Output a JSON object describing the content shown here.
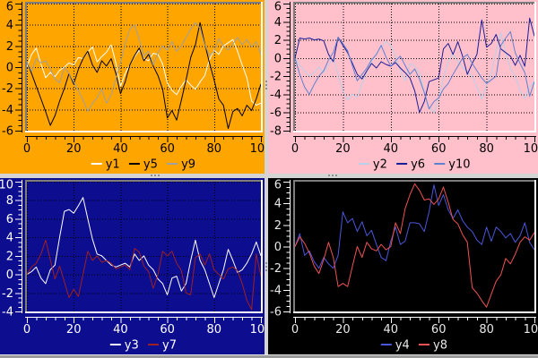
{
  "window": {
    "title": "",
    "splitter_color": "#d4d4d4",
    "splitter_dot_color": "#8f8f8f",
    "frame_dark": "#7d7d7d",
    "frame_light": "#ffffff"
  },
  "chart_data": [
    {
      "id": "top-left",
      "type": "line",
      "title": "",
      "xlabel": "",
      "ylabel": "",
      "xlim": [
        0,
        100
      ],
      "ylim": [
        -6,
        6
      ],
      "xticks": [
        0,
        20,
        40,
        60,
        80,
        100
      ],
      "yticks": [
        -6,
        -4,
        -2,
        0,
        2,
        4,
        6
      ],
      "x_step": 2,
      "x_minor_step": 4,
      "y_minor_step": 0.5,
      "grid": true,
      "legend_position": "bottom",
      "colors": {
        "background": "#ffa500",
        "text": "#000000",
        "axis": "#000000",
        "grid": "#000000"
      },
      "series": [
        {
          "name": "y1",
          "color": "#ffffff",
          "values": [
            0.0,
            1.2,
            1.8,
            0.3,
            -1.0,
            -0.5,
            -0.9,
            -0.3,
            0.0,
            0.4,
            0.2,
            0.9,
            0.8,
            1.4,
            1.9,
            0.5,
            1.0,
            1.4,
            2.1,
            0.4,
            -1.8,
            -0.6,
            0.2,
            1.0,
            1.6,
            0.8,
            0.6,
            1.3,
            1.2,
            0.3,
            -1.5,
            -2.2,
            -2.6,
            -1.8,
            -1.2,
            -1.7,
            -2.1,
            -1.4,
            -0.8,
            0.7,
            1.6,
            1.2,
            2.0,
            2.3,
            2.6,
            1.5,
            0.2,
            -1.0,
            -3.2,
            -3.6,
            -3.4
          ]
        },
        {
          "name": "y5",
          "color": "#000000",
          "values": [
            0.5,
            -0.6,
            -1.8,
            -3.0,
            -4.2,
            -5.5,
            -4.6,
            -3.2,
            -2.0,
            -0.6,
            -1.6,
            -0.2,
            0.8,
            1.5,
            0.2,
            -0.5,
            0.6,
            0.1,
            0.8,
            -0.6,
            -2.5,
            -1.4,
            0.2,
            1.1,
            1.8,
            0.6,
            1.2,
            0.1,
            -0.8,
            -2.1,
            -4.8,
            -4.1,
            -5.0,
            -3.1,
            -1.2,
            0.9,
            2.1,
            4.2,
            2.2,
            0.4,
            -1.2,
            -3.0,
            -3.6,
            -5.8,
            -4.2,
            -3.9,
            -4.6,
            -3.6,
            -4.1,
            -3.0,
            -1.6
          ]
        },
        {
          "name": "y9",
          "color": "#a0a0a0",
          "values": [
            0.5,
            -0.4,
            0.8,
            0.4,
            0.6,
            -0.2,
            -1.1,
            -1.5,
            0.0,
            -0.6,
            -1.4,
            -2.2,
            -3.1,
            -4.2,
            -3.4,
            -2.9,
            -2.1,
            -3.4,
            -2.6,
            -1.1,
            0.4,
            2.2,
            3.6,
            4.0,
            2.6,
            1.1,
            1.5,
            0.2,
            1.4,
            2.0,
            1.6,
            2.4,
            1.5,
            2.0,
            2.8,
            3.6,
            4.2,
            3.7,
            2.1,
            1.1,
            1.5,
            2.7,
            2.0,
            1.6,
            2.2,
            2.8,
            2.1,
            2.6,
            1.9,
            2.4,
            1.2
          ]
        }
      ]
    },
    {
      "id": "top-right",
      "type": "line",
      "title": "",
      "xlabel": "",
      "ylabel": "",
      "xlim": [
        0,
        100
      ],
      "ylim": [
        -8,
        6
      ],
      "xticks": [
        0,
        20,
        40,
        60,
        80,
        100
      ],
      "yticks": [
        -8,
        -6,
        -4,
        -2,
        0,
        2,
        4,
        6
      ],
      "x_step": 2,
      "x_minor_step": 4,
      "y_minor_step": 0.5,
      "grid": true,
      "legend_position": "bottom",
      "colors": {
        "background": "#ffc0cb",
        "text": "#000000",
        "axis": "#000000",
        "grid": "#000000"
      },
      "series": [
        {
          "name": "y2",
          "color": "#b8d0ea",
          "values": [
            0.0,
            -0.8,
            -1.4,
            -2.0,
            -1.6,
            -1.0,
            -1.6,
            -0.8,
            0.0,
            -1.8,
            -3.6,
            -4.6,
            -4.0,
            -4.3,
            -2.8,
            -1.5,
            -0.4,
            0.5,
            1.2,
            1.8,
            1.4,
            0.2,
            -1.4,
            -2.5,
            -0.6,
            -0.9,
            -1.6,
            -3.8,
            -5.4,
            -6.0,
            -4.4,
            -2.2,
            -0.4,
            0.5,
            -0.4,
            -1.0,
            -1.6,
            -2.0,
            -3.2,
            -4.5,
            -3.0,
            -1.6,
            0.8,
            2.8,
            0.6,
            -1.2,
            -2.0,
            -3.6,
            -4.4,
            -3.2,
            -2.6
          ]
        },
        {
          "name": "y6",
          "color": "#1c1c96",
          "values": [
            0.0,
            2.2,
            2.1,
            2.2,
            2.0,
            2.1,
            1.9,
            0.4,
            -0.4,
            2.3,
            1.4,
            0.6,
            -0.6,
            -1.8,
            -2.3,
            -1.4,
            -0.6,
            -1.1,
            -0.4,
            -0.7,
            -0.9,
            -0.5,
            -1.1,
            -1.6,
            -2.2,
            -3.6,
            -6.0,
            -4.8,
            -2.6,
            -2.4,
            -2.2,
            1.0,
            1.6,
            0.4,
            1.8,
            0.2,
            -1.8,
            -0.6,
            0.4,
            4.2,
            1.2,
            1.6,
            2.6,
            1.0,
            0.6,
            0.2,
            -0.8,
            0.3,
            -0.9,
            4.4,
            2.4
          ]
        },
        {
          "name": "y10",
          "color": "#6080d0",
          "values": [
            0.0,
            -1.8,
            -3.2,
            -4.0,
            -2.9,
            -2.0,
            -1.4,
            -0.2,
            0.6,
            2.3,
            1.6,
            0.8,
            -0.9,
            -2.5,
            -1.8,
            -1.1,
            -0.2,
            0.4,
            1.4,
            0.1,
            -0.9,
            -0.3,
            0.2,
            -0.8,
            -1.8,
            -1.2,
            -2.3,
            -3.8,
            -5.6,
            -4.8,
            -4.4,
            -3.4,
            -2.8,
            -1.8,
            -0.9,
            0.0,
            0.4,
            -0.6,
            -1.4,
            -2.2,
            -2.8,
            -2.4,
            -2.0,
            1.4,
            2.2,
            2.9,
            0.6,
            -0.6,
            -1.6,
            -4.2,
            -2.6
          ]
        }
      ]
    },
    {
      "id": "bottom-left",
      "type": "line",
      "title": "",
      "xlabel": "",
      "ylabel": "",
      "xlim": [
        0,
        100
      ],
      "ylim": [
        -4,
        10
      ],
      "xticks": [
        0,
        20,
        40,
        60,
        80,
        100
      ],
      "yticks": [
        -4,
        -2,
        0,
        2,
        4,
        6,
        8,
        10
      ],
      "x_step": 2,
      "x_minor_step": 4,
      "y_minor_step": 0.5,
      "grid": true,
      "legend_position": "bottom",
      "colors": {
        "background": "#0d0d90",
        "text": "#ffffff",
        "axis": "#ffffff",
        "grid": "#000000"
      },
      "series": [
        {
          "name": "y3",
          "color": "#ffffff",
          "values": [
            0.0,
            0.3,
            0.8,
            -0.4,
            -1.0,
            0.5,
            1.0,
            4.0,
            6.8,
            7.0,
            6.6,
            7.4,
            8.3,
            6.0,
            3.8,
            2.2,
            2.0,
            1.5,
            1.0,
            0.8,
            1.0,
            1.2,
            0.8,
            2.2,
            1.5,
            2.0,
            1.0,
            0.5,
            -0.5,
            -1.0,
            -2.2,
            -0.4,
            -0.2,
            -1.8,
            -1.0,
            1.5,
            3.7,
            1.5,
            0.5,
            -1.0,
            -2.5,
            -1.0,
            0.5,
            2.7,
            1.5,
            0.2,
            0.5,
            1.2,
            2.2,
            3.5,
            2.0
          ]
        },
        {
          "name": "y7",
          "color": "#9e2020",
          "values": [
            0.0,
            0.8,
            1.2,
            2.2,
            3.7,
            1.6,
            -0.5,
            0.9,
            -0.8,
            -2.5,
            -1.6,
            -2.4,
            0.0,
            2.5,
            1.5,
            2.0,
            1.3,
            1.5,
            1.2,
            0.6,
            0.8,
            1.0,
            0.5,
            2.8,
            2.4,
            0.9,
            0.3,
            -1.5,
            0.0,
            2.5,
            2.0,
            2.5,
            1.2,
            0.4,
            -2.0,
            -2.2,
            1.8,
            2.2,
            1.0,
            2.2,
            0.5,
            0.0,
            -0.5,
            0.6,
            0.8,
            0.4,
            -1.0,
            -2.8,
            -3.8,
            2.2,
            -0.2
          ]
        }
      ]
    },
    {
      "id": "bottom-right",
      "type": "line",
      "title": "",
      "xlabel": "",
      "ylabel": "",
      "xlim": [
        0,
        100
      ],
      "ylim": [
        -6,
        6
      ],
      "xticks": [
        0,
        20,
        40,
        60,
        80,
        100
      ],
      "yticks": [
        -6,
        -4,
        -2,
        0,
        2,
        4,
        6
      ],
      "x_step": 2,
      "x_minor_step": 4,
      "y_minor_step": 0.5,
      "grid": false,
      "legend_position": "bottom",
      "colors": {
        "background": "#000000",
        "text": "#e8e8e8",
        "axis": "#ffffff",
        "grid": "#000000"
      },
      "series": [
        {
          "name": "y4",
          "color": "#4a57d8",
          "values": [
            0.0,
            1.2,
            -0.8,
            -0.4,
            -1.4,
            -2.0,
            -1.0,
            -1.6,
            -2.0,
            -0.8,
            3.2,
            2.2,
            2.6,
            1.4,
            2.3,
            1.0,
            1.5,
            0.2,
            -1.0,
            -1.3,
            0.5,
            1.8,
            0.2,
            0.5,
            2.2,
            2.2,
            2.1,
            1.4,
            3.2,
            5.7,
            3.8,
            4.8,
            3.4,
            2.6,
            3.4,
            2.4,
            1.8,
            1.4,
            0.6,
            0.2,
            1.8,
            0.5,
            1.8,
            1.4,
            0.8,
            1.2,
            0.4,
            1.0,
            2.2,
            0.4,
            -0.3
          ]
        },
        {
          "name": "y8",
          "color": "#ee5252",
          "values": [
            0.0,
            0.9,
            0.3,
            -0.6,
            -1.8,
            -2.5,
            -1.2,
            0.4,
            -1.0,
            -3.7,
            -3.4,
            -3.7,
            -1.8,
            0.0,
            -1.0,
            0.4,
            -0.2,
            -0.4,
            0.2,
            -0.3,
            0.0,
            2.2,
            1.2,
            3.5,
            4.8,
            5.8,
            5.2,
            4.3,
            4.4,
            3.9,
            4.4,
            5.5,
            4.1,
            2.5,
            2.1,
            1.1,
            0.4,
            -3.8,
            -4.3,
            -5.0,
            -5.6,
            -4.4,
            -3.2,
            -2.6,
            -1.1,
            -1.6,
            -0.7,
            0.4,
            0.9,
            0.6,
            1.3
          ]
        }
      ]
    }
  ]
}
